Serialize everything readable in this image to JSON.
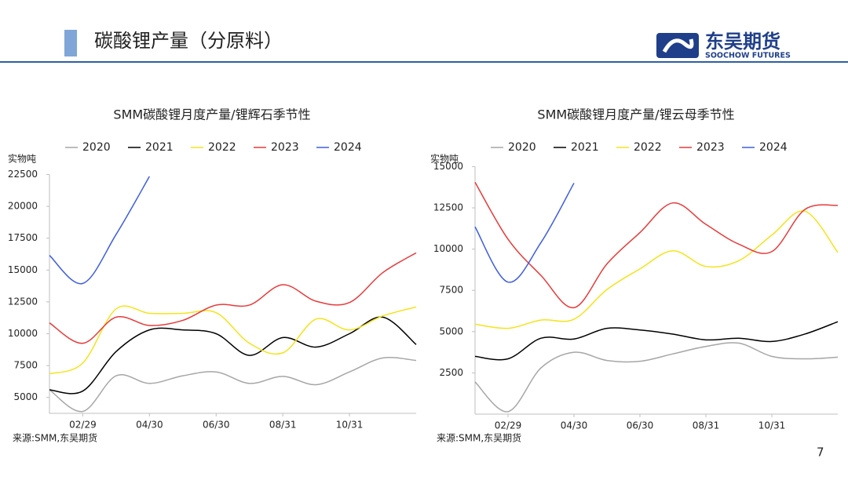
{
  "header": {
    "title": "碳酸锂产量（分原料）",
    "logo_cn": "东吴期货",
    "logo_en": "SOOCHOW FUTURES"
  },
  "page_number": "7",
  "chart_data": [
    {
      "type": "line",
      "title": "SMM碳酸锂月度产量/锂辉石季节性",
      "y_label": "实物吨",
      "source": "来源:SMM,东吴期货",
      "categories": [
        null,
        "02/29",
        null,
        "04/30",
        null,
        "06/30",
        null,
        "08/31",
        null,
        "10/31",
        null,
        null
      ],
      "ylim": [
        3750,
        22500
      ],
      "yticks": [
        5000,
        7500,
        10000,
        12500,
        15000,
        17500,
        20000,
        22500
      ],
      "series": [
        {
          "name": "2020",
          "color": "#a6a6a6",
          "values": [
            5600,
            3900,
            6700,
            6100,
            6700,
            7000,
            6100,
            6650,
            6000,
            7000,
            8100,
            7900
          ]
        },
        {
          "name": "2021",
          "color": "#000000",
          "values": [
            5600,
            5500,
            8600,
            10300,
            10300,
            10000,
            8300,
            9700,
            8950,
            10000,
            11300,
            9150
          ]
        },
        {
          "name": "2022",
          "color": "#f5e31c",
          "values": [
            6850,
            7700,
            11950,
            11600,
            11600,
            11650,
            9250,
            8500,
            11150,
            10300,
            11400,
            12100
          ]
        },
        {
          "name": "2023",
          "color": "#e83a3a",
          "values": [
            10850,
            9250,
            11300,
            10650,
            11050,
            12250,
            12250,
            13850,
            12550,
            12450,
            14800,
            16350
          ]
        },
        {
          "name": "2024",
          "color": "#3d5de0",
          "values": [
            16150,
            13950,
            17800,
            22350,
            null,
            null,
            null,
            null,
            null,
            null,
            null,
            null
          ]
        }
      ]
    },
    {
      "type": "line",
      "title": "SMM碳酸锂月度产量/锂云母季节性",
      "y_label": "实物吨",
      "source": "来源:SMM,东吴期货",
      "categories": [
        null,
        "02/29",
        null,
        "04/30",
        null,
        "06/30",
        null,
        "08/31",
        null,
        "10/31",
        null,
        null
      ],
      "ylim": [
        0,
        15000
      ],
      "yticks": [
        2500,
        5000,
        7500,
        10000,
        12500,
        15000
      ],
      "series": [
        {
          "name": "2020",
          "color": "#a6a6a6",
          "values": [
            1950,
            150,
            2800,
            3750,
            3250,
            3200,
            3650,
            4100,
            4300,
            3500,
            3350,
            3450
          ]
        },
        {
          "name": "2021",
          "color": "#000000",
          "values": [
            3500,
            3350,
            4600,
            4550,
            5200,
            5100,
            4850,
            4500,
            4600,
            4400,
            4850,
            5600
          ]
        },
        {
          "name": "2022",
          "color": "#f5e31c",
          "values": [
            5450,
            5200,
            5700,
            5750,
            7550,
            8800,
            9900,
            8950,
            9300,
            10850,
            12300,
            9800
          ]
        },
        {
          "name": "2023",
          "color": "#e83a3a",
          "values": [
            14050,
            10600,
            8400,
            6450,
            9100,
            11000,
            12800,
            11500,
            10300,
            9850,
            12400,
            12650
          ]
        },
        {
          "name": "2024",
          "color": "#3d5de0",
          "values": [
            11350,
            8000,
            10400,
            14000,
            null,
            null,
            null,
            null,
            null,
            null,
            null,
            null
          ]
        }
      ]
    }
  ]
}
